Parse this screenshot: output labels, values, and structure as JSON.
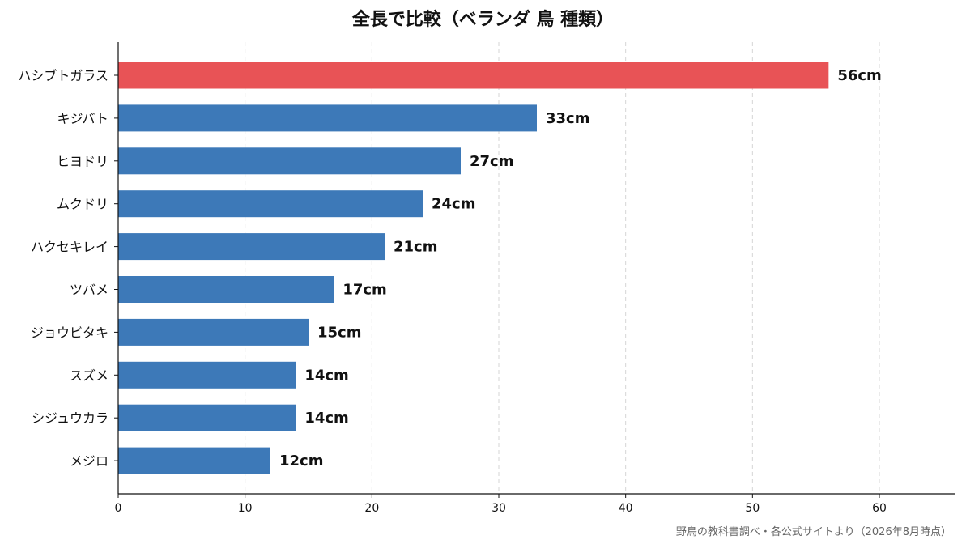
{
  "chart_data": {
    "type": "bar",
    "orientation": "horizontal",
    "title": "全長で比較（ベランダ 鳥 種類）",
    "categories": [
      "ハシブトガラス",
      "キジバト",
      "ヒヨドリ",
      "ムクドリ",
      "ハクセキレイ",
      "ツバメ",
      "ジョウビタキ",
      "スズメ",
      "シジュウカラ",
      "メジロ"
    ],
    "values": [
      56,
      33,
      27,
      24,
      21,
      17,
      15,
      14,
      14,
      12
    ],
    "value_labels": [
      "56cm",
      "33cm",
      "27cm",
      "24cm",
      "21cm",
      "17cm",
      "15cm",
      "14cm",
      "14cm",
      "12cm"
    ],
    "unit": "cm",
    "xlim": [
      0,
      66
    ],
    "xticks": [
      0,
      10,
      20,
      30,
      40,
      50,
      60
    ],
    "grid": "vertical dashed",
    "colors": {
      "highlight": "#e85356",
      "default": "#3d79b8"
    },
    "highlight_index": 0
  },
  "source_note": "野鳥の教科書調べ・各公式サイトより（2026年8月時点）"
}
